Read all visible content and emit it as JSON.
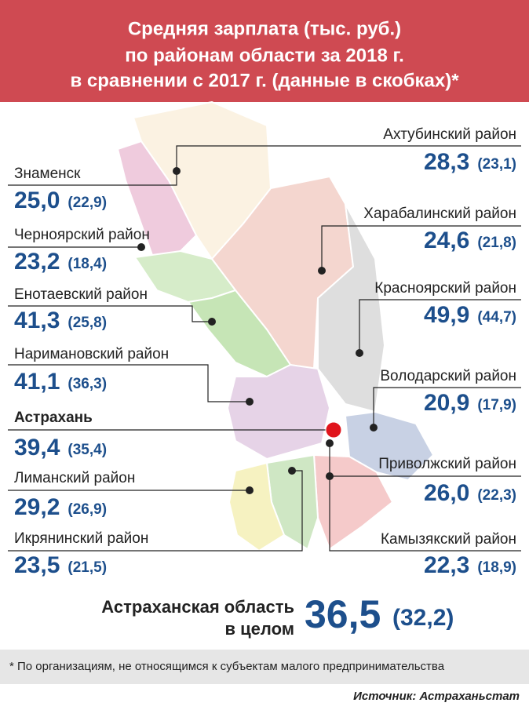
{
  "header": {
    "title_lines": [
      "Средняя зарплата (тыс. руб.)",
      "по районам области за 2018 г.",
      "в сравнении с 2017 г. (данные в скобках)*"
    ]
  },
  "districts": [
    {
      "name": "Знаменск",
      "value_2018": "25,0",
      "value_2017": "(22,9)"
    },
    {
      "name": "Черноярский район",
      "value_2018": "23,2",
      "value_2017": "(18,4)"
    },
    {
      "name": "Енотаевский район",
      "value_2018": "41,3",
      "value_2017": "(25,8)"
    },
    {
      "name": "Наримановский район",
      "value_2018": "41,1",
      "value_2017": "(36,3)"
    },
    {
      "name": "Астрахань",
      "value_2018": "39,4",
      "value_2017": "(35,4)"
    },
    {
      "name": "Лиманский район",
      "value_2018": "29,2",
      "value_2017": "(26,9)"
    },
    {
      "name": "Икрянинский район",
      "value_2018": "23,5",
      "value_2017": "(21,5)"
    },
    {
      "name": "Ахтубинский район",
      "value_2018": "28,3",
      "value_2017": "(23,1)"
    },
    {
      "name": "Харабалинский район",
      "value_2018": "24,6",
      "value_2017": "(21,8)"
    },
    {
      "name": "Красноярский район",
      "value_2018": "49,9",
      "value_2017": "(44,7)"
    },
    {
      "name": "Володарский район",
      "value_2018": "20,9",
      "value_2017": "(17,9)"
    },
    {
      "name": "Приволжский район",
      "value_2018": "26,0",
      "value_2017": "(22,3)"
    },
    {
      "name": "Камызякский район",
      "value_2018": "22,3",
      "value_2017": "(18,9)"
    }
  ],
  "total": {
    "label_lines": [
      "Астраханская область",
      "в целом"
    ],
    "value_2018": "36,5",
    "value_2017": "(32,2)"
  },
  "footnote": "* По организациям, не относящимся к субъектам малого предпринимательства",
  "source": "Источник: Астраханьстат"
}
